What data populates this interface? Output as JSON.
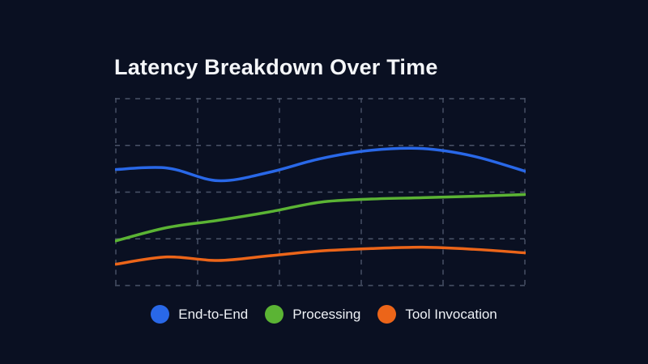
{
  "page": {
    "background": "#0a1022",
    "grid_color": "#4b5469"
  },
  "header": {
    "title": "Latency Breakdown Over Time"
  },
  "chart_data": {
    "type": "line",
    "title": "Latency Breakdown Over Time",
    "x": [
      0,
      1,
      2,
      3,
      4,
      5,
      6,
      7,
      8
    ],
    "x_tick_labels_visible": false,
    "y_tick_labels_visible": false,
    "xlabel": "",
    "ylabel": "",
    "ylim": [
      0,
      100
    ],
    "grid": true,
    "grid_style": "dashed",
    "x_gridline_count": 6,
    "y_gridline_count": 5,
    "legend_position": "bottom",
    "series": [
      {
        "name": "End-to-End",
        "color": "#2968e8",
        "values": [
          62.1,
          62.9,
          56.1,
          60.6,
          67.9,
          72.4,
          73.3,
          69.2,
          61.2
        ]
      },
      {
        "name": "Processing",
        "color": "#5bb434",
        "values": [
          23.9,
          31.0,
          34.9,
          39.4,
          44.6,
          46.3,
          47.0,
          47.8,
          48.7
        ]
      },
      {
        "name": "Tool Invocation",
        "color": "#ec6519",
        "values": [
          11.4,
          15.3,
          13.4,
          15.9,
          18.5,
          19.8,
          20.5,
          19.4,
          17.5
        ]
      }
    ]
  },
  "legend": {
    "items": [
      {
        "label": "End-to-End",
        "color": "#2968e8"
      },
      {
        "label": "Processing",
        "color": "#5bb434"
      },
      {
        "label": "Tool Invocation",
        "color": "#ec6519"
      }
    ]
  }
}
